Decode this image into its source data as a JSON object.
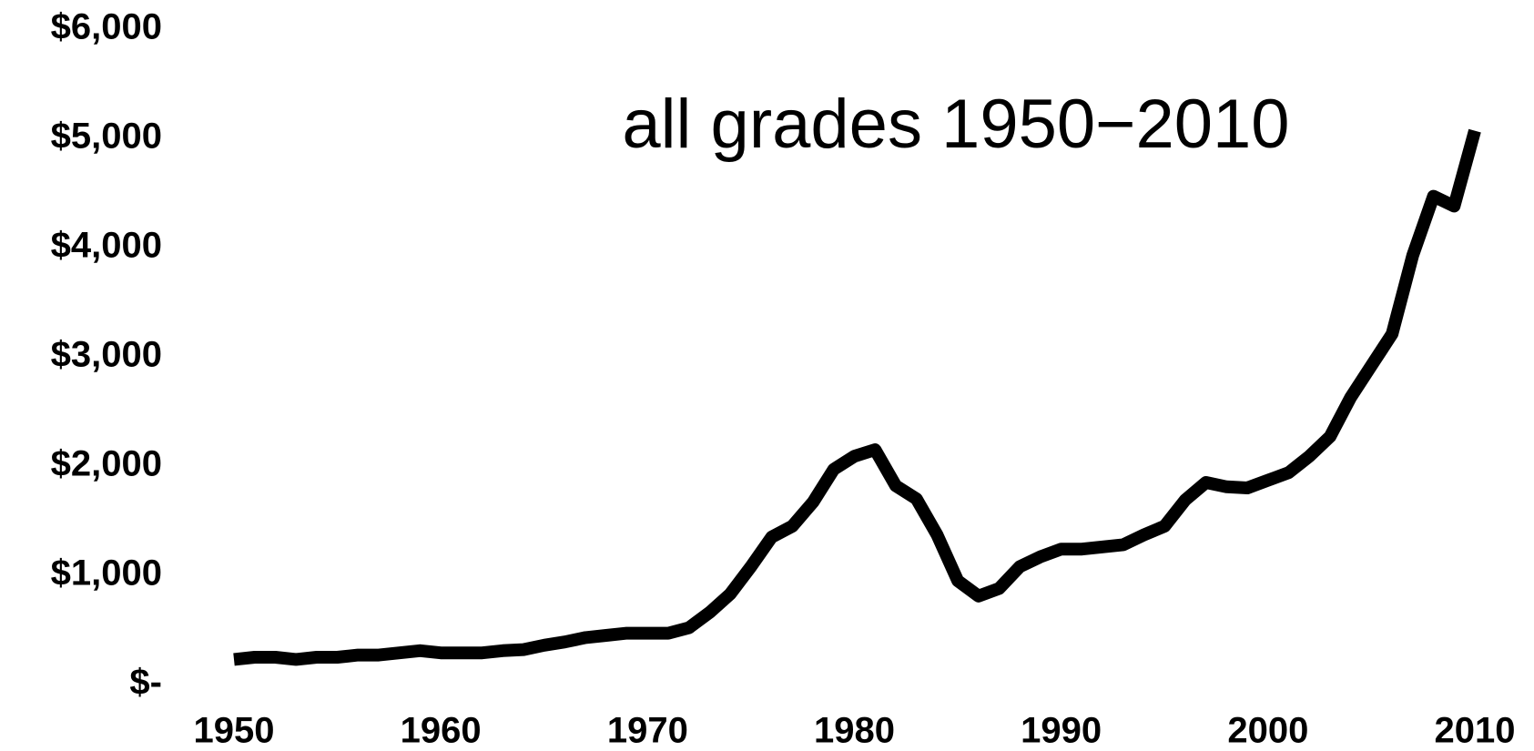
{
  "chart_data": {
    "type": "line",
    "title": "all grades 1950−2010",
    "x": [
      1950,
      1951,
      1952,
      1953,
      1954,
      1955,
      1956,
      1957,
      1958,
      1959,
      1960,
      1961,
      1962,
      1963,
      1964,
      1965,
      1966,
      1967,
      1968,
      1969,
      1970,
      1971,
      1972,
      1973,
      1974,
      1975,
      1976,
      1977,
      1978,
      1979,
      1980,
      1981,
      1982,
      1983,
      1984,
      1985,
      1986,
      1987,
      1988,
      1989,
      1990,
      1991,
      1992,
      1993,
      1994,
      1995,
      1996,
      1997,
      1998,
      1999,
      2000,
      2001,
      2002,
      2003,
      2004,
      2005,
      2006,
      2007,
      2008,
      2009,
      2010
    ],
    "series": [
      {
        "color": "#000000",
        "values": [
          230,
          250,
          250,
          230,
          250,
          250,
          270,
          270,
          290,
          310,
          290,
          290,
          290,
          310,
          320,
          360,
          390,
          430,
          450,
          470,
          470,
          470,
          520,
          660,
          830,
          1080,
          1350,
          1450,
          1670,
          1970,
          2090,
          2150,
          1820,
          1700,
          1370,
          950,
          810,
          880,
          1080,
          1170,
          1240,
          1240,
          1260,
          1280,
          1370,
          1450,
          1690,
          1850,
          1810,
          1800,
          1870,
          1940,
          2090,
          2270,
          2630,
          2920,
          3210,
          3930,
          4470,
          4380,
          5070
        ]
      }
    ],
    "xlim": [
      1950,
      2010
    ],
    "xticks": [
      1950,
      1960,
      1970,
      1980,
      1990,
      2000,
      2010
    ],
    "ylim": [
      0,
      6000
    ],
    "yticks": [
      {
        "value": 0,
        "label": "$-"
      },
      {
        "value": 1000,
        "label": "$1,000"
      },
      {
        "value": 2000,
        "label": "$2,000"
      },
      {
        "value": 3000,
        "label": "$3,000"
      },
      {
        "value": 4000,
        "label": "$4,000"
      },
      {
        "value": 5000,
        "label": "$5,000"
      },
      {
        "value": 6000,
        "label": "$6,000"
      }
    ],
    "grid": false
  }
}
